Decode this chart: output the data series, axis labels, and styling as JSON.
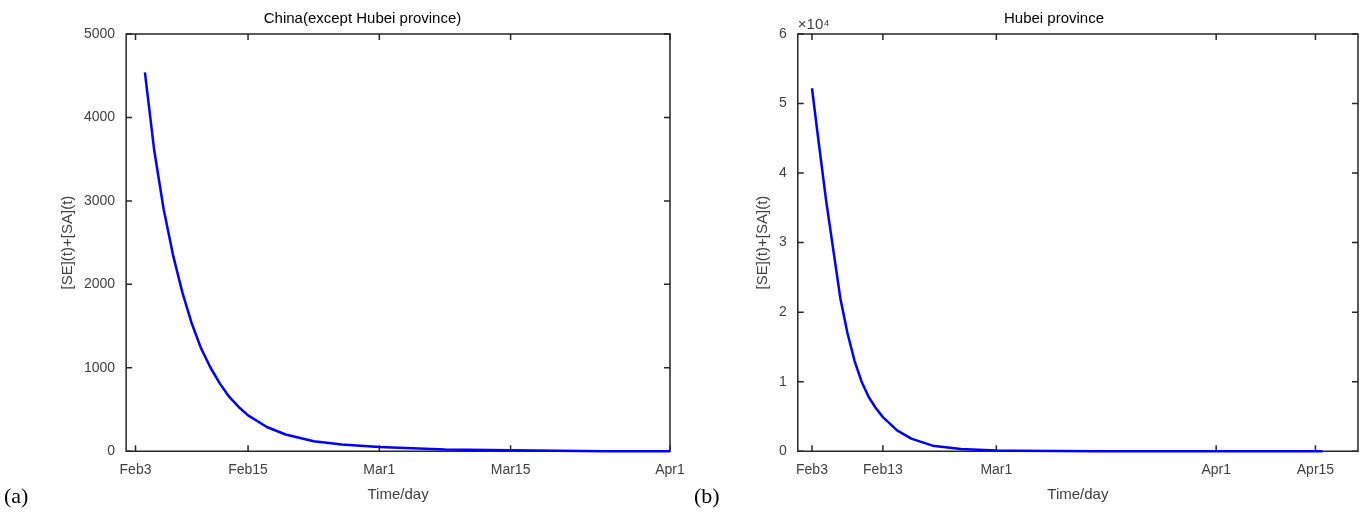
{
  "chart_data": [
    {
      "type": "line",
      "title": "China(except Hubei province)",
      "xlabel": "Time/day",
      "ylabel": "[SE](t)+[SA](t)",
      "annotations": [
        "(a)"
      ],
      "xlim": [
        "--02-02",
        "--04-01"
      ],
      "xticks": [
        {
          "value": "--02-03",
          "label": "Feb3"
        },
        {
          "value": "--02-15",
          "label": "Feb15"
        },
        {
          "value": "--03-01",
          "label": "Mar1"
        },
        {
          "value": "--03-15",
          "label": "Mar15"
        },
        {
          "value": "--04-01",
          "label": "Apr1"
        }
      ],
      "ylim": [
        0,
        5000
      ],
      "yticks": [
        0,
        1000,
        2000,
        3000,
        4000,
        5000
      ],
      "series": [
        {
          "color": "#0000ff",
          "x": [
            "--02-04",
            "--02-05",
            "--02-06",
            "--02-07",
            "--02-08",
            "--02-09",
            "--02-10",
            "--02-11",
            "--02-12",
            "--02-13",
            "--02-14",
            "--02-15",
            "--02-17",
            "--02-19",
            "--02-22",
            "--02-25",
            "--03-01",
            "--03-08",
            "--03-15",
            "--03-25",
            "--04-01"
          ],
          "values": [
            4540,
            3600,
            2900,
            2350,
            1900,
            1530,
            1230,
            1000,
            810,
            650,
            530,
            430,
            290,
            200,
            120,
            80,
            50,
            20,
            10,
            0,
            0
          ]
        }
      ]
    },
    {
      "type": "line",
      "title": "Hubei province",
      "xlabel": "Time/day",
      "ylabel": "[SE](t)+[SA](t)",
      "annotations": [
        "(b)",
        "×10⁴"
      ],
      "xlim": [
        "--02-01",
        "--04-21"
      ],
      "xticks": [
        {
          "value": "--02-03",
          "label": "Feb3"
        },
        {
          "value": "--02-13",
          "label": "Feb13"
        },
        {
          "value": "--03-01",
          "label": "Mar1"
        },
        {
          "value": "--04-01",
          "label": "Apr1"
        },
        {
          "value": "--04-15",
          "label": "Apr15"
        }
      ],
      "ylim": [
        0,
        6
      ],
      "yticks": [
        0,
        1,
        2,
        3,
        4,
        5,
        6
      ],
      "series": [
        {
          "color": "#0000ff",
          "x": [
            "--02-03",
            "--02-04",
            "--02-05",
            "--02-06",
            "--02-07",
            "--02-08",
            "--02-09",
            "--02-10",
            "--02-11",
            "--02-12",
            "--02-13",
            "--02-15",
            "--02-17",
            "--02-20",
            "--02-24",
            "--03-01",
            "--03-15",
            "--04-01",
            "--04-16"
          ],
          "values": [
            5.22,
            4.4,
            3.6,
            2.9,
            2.2,
            1.7,
            1.3,
            1.0,
            0.78,
            0.62,
            0.49,
            0.3,
            0.18,
            0.08,
            0.03,
            0.01,
            0,
            0,
            0
          ]
        }
      ]
    }
  ]
}
